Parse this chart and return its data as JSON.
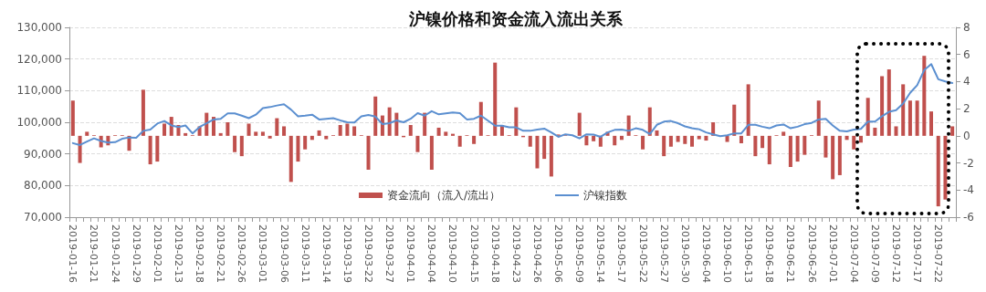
{
  "chart_data": {
    "type": "bar",
    "title": "沪镍价格和资金流入流出关系",
    "categories": [
      "2019-01-16",
      null,
      null,
      "2019-01-21",
      null,
      null,
      "2019-01-24",
      null,
      null,
      "2019-01-29",
      null,
      null,
      "2019-02-01",
      null,
      null,
      "2019-02-13",
      null,
      null,
      "2019-02-18",
      null,
      null,
      "2019-02-21",
      null,
      null,
      "2019-02-26",
      null,
      null,
      "2019-03-01",
      null,
      null,
      "2019-03-06",
      null,
      null,
      "2019-03-11",
      null,
      null,
      "2019-03-14",
      null,
      null,
      "2019-03-19",
      null,
      null,
      "2019-03-22",
      null,
      null,
      "2019-03-27",
      null,
      null,
      "2019-04-01",
      null,
      null,
      "2019-04-04",
      null,
      null,
      "2019-04-10",
      null,
      null,
      "2019-04-15",
      null,
      null,
      "2019-04-18",
      null,
      null,
      "2019-04-23",
      null,
      null,
      "2019-04-26",
      null,
      null,
      "2019-05-06",
      null,
      null,
      "2019-05-09",
      null,
      null,
      "2019-05-14",
      null,
      null,
      "2019-05-17",
      null,
      null,
      "2019-05-22",
      null,
      null,
      "2019-05-27",
      null,
      null,
      "2019-05-30",
      null,
      null,
      "2019-06-04",
      null,
      null,
      "2019-06-10",
      null,
      null,
      "2019-06-13",
      null,
      null,
      "2019-06-18",
      null,
      null,
      "2019-06-21",
      null,
      null,
      "2019-06-26",
      null,
      null,
      "2019-07-01",
      null,
      null,
      "2019-07-04",
      null,
      null,
      "2019-07-09",
      null,
      null,
      "2019-07-12",
      null,
      null,
      "2019-07-17",
      null,
      null,
      "2019-07-22",
      null,
      null
    ],
    "series": [
      {
        "name": "资金流向（流入/流出）",
        "axis": "y2",
        "color": "#c0504d",
        "values": [
          2.6,
          -2.0,
          0.3,
          0.05,
          -0.85,
          -0.7,
          0.05,
          0.05,
          -1.1,
          null,
          3.4,
          -2.1,
          -1.9,
          0.9,
          1.4,
          0.8,
          0.2,
          0.05,
          0.7,
          1.7,
          1.4,
          0.2,
          1.0,
          -1.2,
          -1.5,
          0.9,
          0.3,
          0.3,
          -0.2,
          1.3,
          0.7,
          -3.4,
          -1.9,
          -1.0,
          -0.3,
          0.4,
          -0.25,
          0.05,
          0.8,
          0.9,
          0.7,
          0.05,
          -2.5,
          2.9,
          1.5,
          2.1,
          1.7,
          -0.1,
          0.8,
          -1.2,
          1.7,
          -2.5,
          0.6,
          0.3,
          0.15,
          -0.8,
          0.05,
          -0.6,
          2.5,
          0.05,
          5.4,
          0.8,
          0.05,
          2.1,
          -0.1,
          -0.8,
          -2.4,
          -1.7,
          -3.0,
          0.1,
          0.05,
          null,
          1.7,
          -0.7,
          -0.4,
          -0.8,
          0.3,
          -0.7,
          -0.3,
          1.5,
          0.05,
          -1.0,
          2.1,
          0.4,
          -1.5,
          -0.8,
          -0.45,
          -0.6,
          -0.8,
          -0.25,
          -0.35,
          1.0,
          null,
          -0.45,
          2.3,
          -0.55,
          3.8,
          -1.5,
          -0.9,
          -2.1,
          0.05,
          0.3,
          -2.3,
          -1.9,
          -1.4,
          0.05,
          2.6,
          -1.6,
          -3.2,
          -2.9,
          -0.3,
          -1.0,
          -0.5,
          2.8,
          0.6,
          4.4,
          4.9,
          0.7,
          3.8,
          2.6,
          2.6,
          5.9,
          1.8,
          -5.2,
          -4.7,
          0.7
        ]
      },
      {
        "name": "沪镍指数",
        "type": "line",
        "color": "#5b8fd0",
        "values": [
          93400,
          92800,
          93900,
          94900,
          94100,
          93600,
          93700,
          94800,
          95200,
          95100,
          97300,
          97700,
          99600,
          100400,
          99000,
          98500,
          99000,
          96500,
          98500,
          99700,
          100900,
          101100,
          102800,
          102800,
          102100,
          101300,
          102400,
          104500,
          104800,
          105300,
          105700,
          104000,
          101900,
          102100,
          102400,
          100900,
          101100,
          101300,
          100600,
          100000,
          99900,
          101900,
          102300,
          101800,
          99400,
          99700,
          100600,
          100000,
          101100,
          102900,
          102100,
          103500,
          102500,
          102800,
          103100,
          102900,
          100900,
          101100,
          102100,
          100500,
          98900,
          98900,
          98400,
          98400,
          97300,
          97300,
          97700,
          98000,
          96800,
          95400,
          96200,
          95900,
          94900,
          96200,
          96100,
          95400,
          96800,
          97600,
          97700,
          97300,
          98100,
          97600,
          96300,
          99200,
          100200,
          100400,
          99700,
          98700,
          98100,
          97800,
          96800,
          96200,
          95600,
          95900,
          96500,
          96500,
          99200,
          99200,
          98600,
          98100,
          99000,
          99300,
          98100,
          98600,
          99400,
          99800,
          100900,
          101100,
          99000,
          97300,
          97100,
          97700,
          97900,
          100200,
          100200,
          101900,
          103300,
          103800,
          105900,
          109300,
          111700,
          116500,
          118400,
          113600,
          112900,
          112400
        ]
      }
    ],
    "ylim": [
      70000,
      130000
    ],
    "yticks": [
      {
        "value": 70000,
        "label": "70,000"
      },
      {
        "value": 80000,
        "label": "80,000"
      },
      {
        "value": 90000,
        "label": "90,000"
      },
      {
        "value": 100000,
        "label": "100,000"
      },
      {
        "value": 110000,
        "label": "110,000"
      },
      {
        "value": 120000,
        "label": "120,000"
      },
      {
        "value": 130000,
        "label": "130,000"
      }
    ],
    "y2lim": [
      -6,
      8
    ],
    "y2ticks": [
      -6,
      -4,
      -2,
      0,
      2,
      4,
      6,
      8
    ],
    "grid": "y",
    "legend": "bottom",
    "marker": "none"
  }
}
